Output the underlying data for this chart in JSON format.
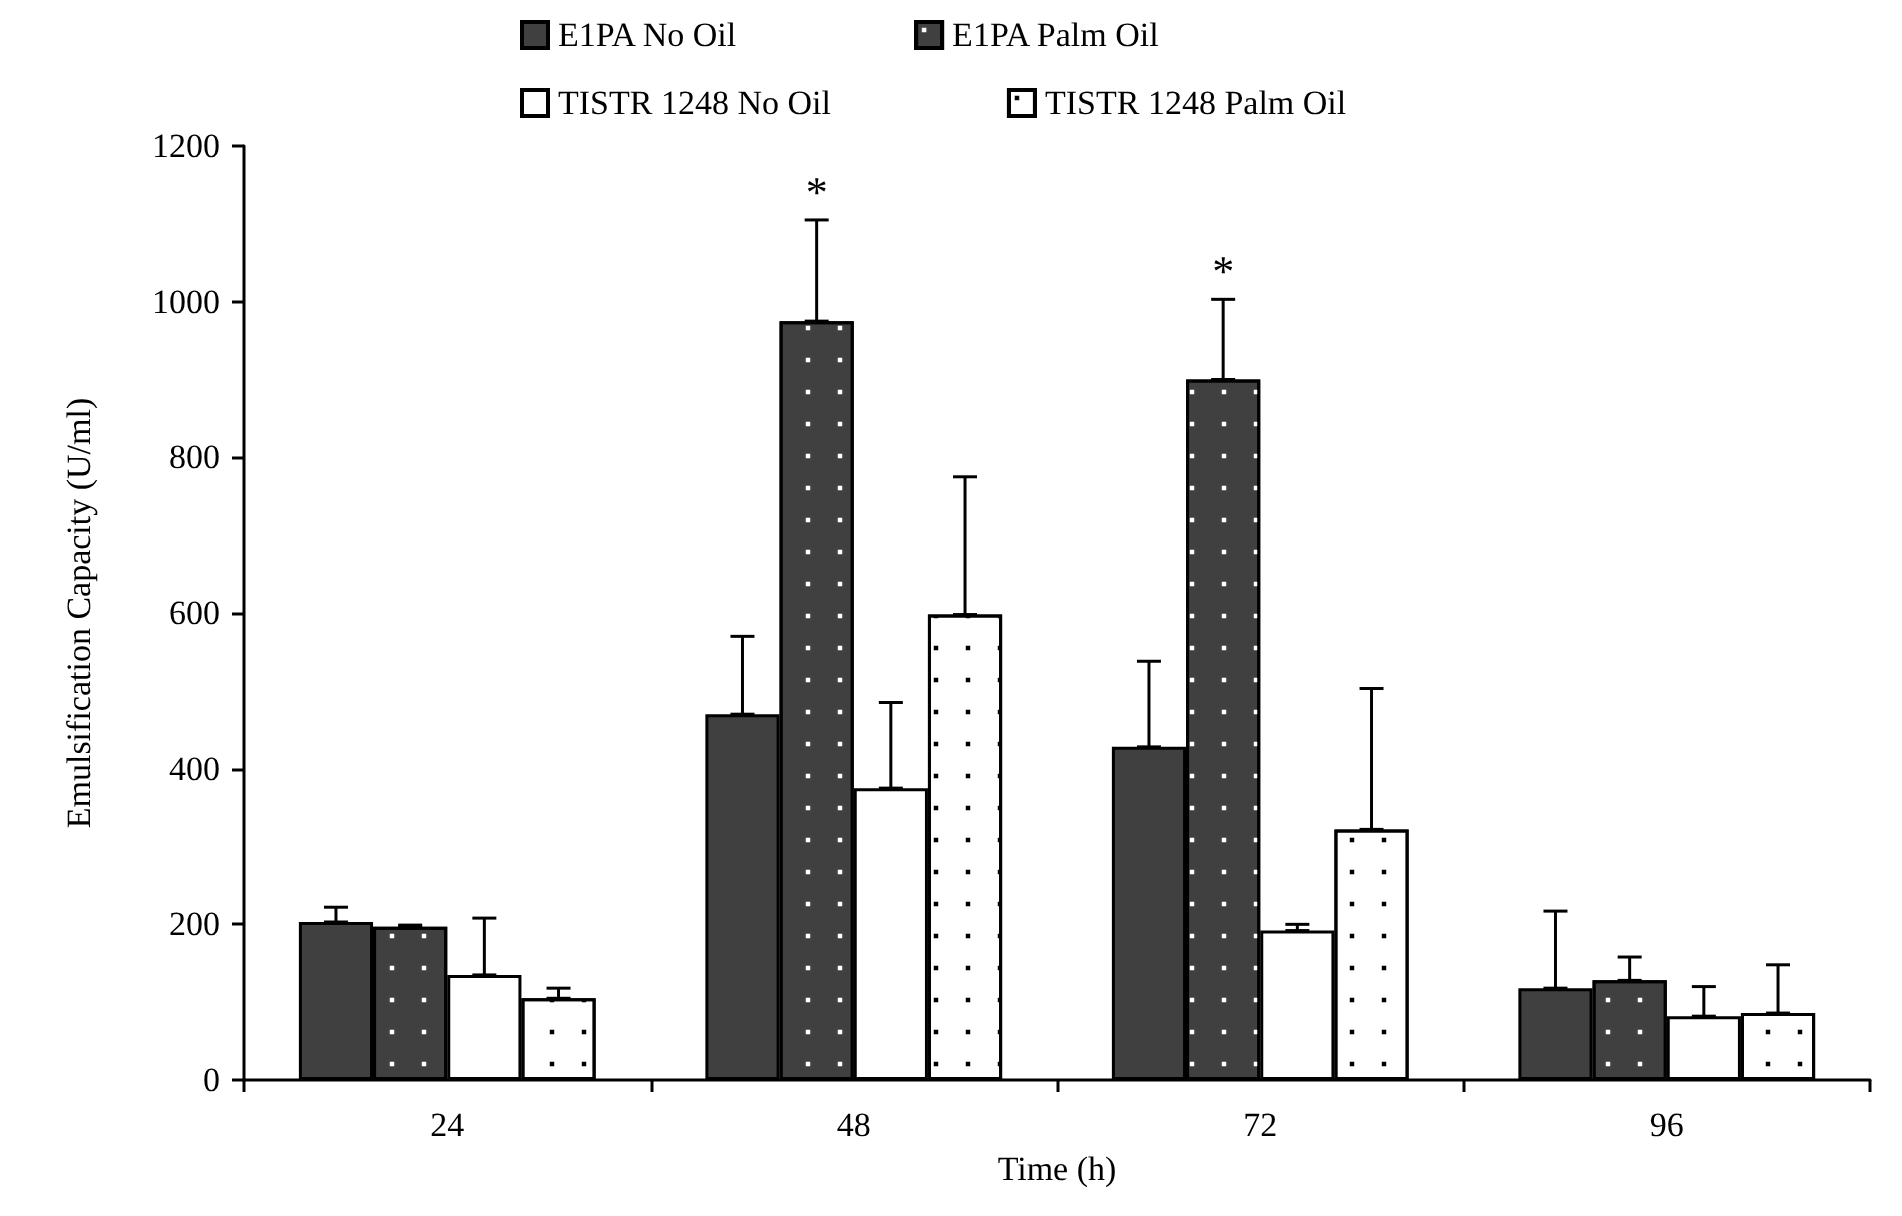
{
  "chart_data": {
    "type": "bar",
    "xlabel": "Time (h)",
    "ylabel": "Emulsification Capacity (U/ml)",
    "categories": [
      "24",
      "48",
      "72",
      "96"
    ],
    "series": [
      {
        "name": "E1PA No Oil",
        "color": "#404040",
        "values": [
          203,
          470,
          428,
          118
        ],
        "errors": [
          [
            203,
            222
          ],
          [
            470,
            570
          ],
          [
            428,
            538
          ],
          [
            118,
            217
          ]
        ]
      },
      {
        "name": "E1PA Palm Oil",
        "color": "#404040",
        "values": [
          197,
          975,
          900,
          128
        ],
        "errors": [
          [
            197,
            199
          ],
          [
            975,
            1105
          ],
          [
            900,
            1003
          ],
          [
            128,
            158
          ]
        ]
      },
      {
        "name": "TISTR 1248 No Oil",
        "color": "#ffffff",
        "values": [
          135,
          375,
          192,
          82
        ],
        "errors": [
          [
            135,
            208
          ],
          [
            375,
            485
          ],
          [
            192,
            200
          ],
          [
            82,
            120
          ]
        ]
      },
      {
        "name": "TISTR 1248 Palm Oil",
        "color": "#ffffff",
        "values": [
          105,
          598,
          322,
          86
        ],
        "errors": [
          [
            105,
            118
          ],
          [
            598,
            775
          ],
          [
            322,
            503
          ],
          [
            86,
            148
          ]
        ]
      }
    ],
    "annotations": [
      {
        "text": "*",
        "x": "48",
        "y": 975
      },
      {
        "text": "*",
        "x": "72",
        "y": 900
      }
    ],
    "ylim": [
      0,
      1200
    ],
    "yticks": [
      0,
      200,
      400,
      600,
      800,
      1000,
      1200
    ],
    "grid": false,
    "legend": "top"
  }
}
